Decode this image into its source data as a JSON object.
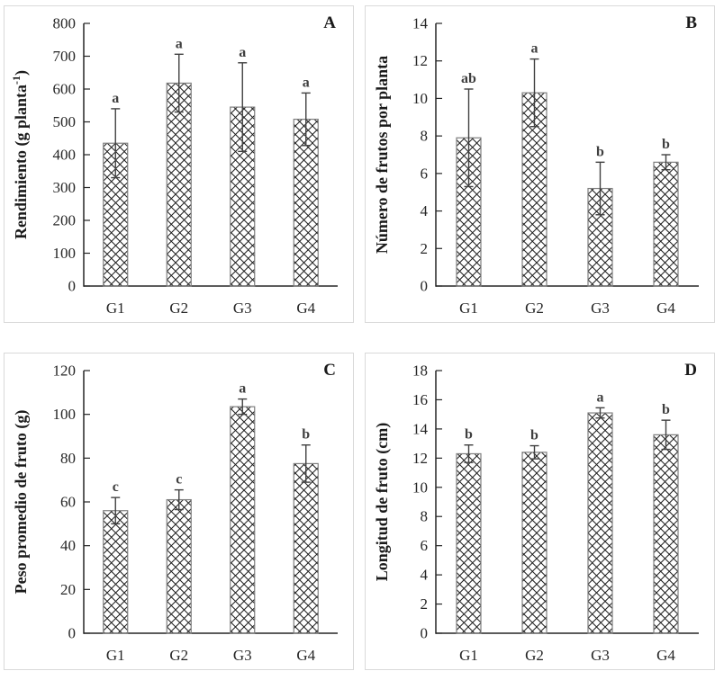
{
  "figure": {
    "background": "#ffffff",
    "panel_border_color": "#d9d9d9",
    "axis_color": "#262626",
    "tick_label_color": "#262626",
    "bar_hatch_color": "#1f1f1f",
    "bar_border_color": "#7f7f7f",
    "bar_fill": "#ffffff",
    "error_bar_color": "#404040",
    "sig_letter_color": "#3f3f3f",
    "panel_letter_color": "#1a1a1a"
  },
  "chart_data": [
    {
      "type": "bar",
      "panel_label": "A",
      "ylabel": "Rendimiento (g planta",
      "ylabel_sup": "-1",
      "ylabel_end": ")",
      "ylim": [
        0,
        800
      ],
      "ytick_step": 100,
      "grid": false,
      "legend": "none",
      "categories": [
        "G1",
        "G2",
        "G3",
        "G4"
      ],
      "values": [
        435,
        618,
        545,
        508
      ],
      "errors": [
        105,
        88,
        135,
        80
      ],
      "sig_letters": [
        "a",
        "a",
        "a",
        "a"
      ]
    },
    {
      "type": "bar",
      "panel_label": "B",
      "ylabel": "Número de frutos por planta",
      "ylabel_sup": "",
      "ylabel_end": "",
      "ylim": [
        0,
        14
      ],
      "ytick_step": 2,
      "grid": false,
      "legend": "none",
      "categories": [
        "G1",
        "G2",
        "G3",
        "G4"
      ],
      "values": [
        7.9,
        10.3,
        5.2,
        6.6
      ],
      "errors": [
        2.6,
        1.8,
        1.4,
        0.4
      ],
      "sig_letters": [
        "ab",
        "a",
        "b",
        "b"
      ]
    },
    {
      "type": "bar",
      "panel_label": "C",
      "ylabel": "Peso promedio de fruto (g)",
      "ylabel_sup": "",
      "ylabel_end": "",
      "ylim": [
        0,
        120
      ],
      "ytick_step": 20,
      "grid": false,
      "legend": "none",
      "categories": [
        "G1",
        "G2",
        "G3",
        "G4"
      ],
      "values": [
        56,
        61,
        103.5,
        77.5
      ],
      "errors": [
        6,
        4.5,
        3.5,
        8.5
      ],
      "sig_letters": [
        "c",
        "c",
        "a",
        "b"
      ]
    },
    {
      "type": "bar",
      "panel_label": "D",
      "ylabel": "Longitud de fruto (cm)",
      "ylabel_sup": "",
      "ylabel_end": "",
      "ylim": [
        0,
        18
      ],
      "ytick_step": 2,
      "grid": false,
      "legend": "none",
      "categories": [
        "G1",
        "G2",
        "G3",
        "G4"
      ],
      "values": [
        12.3,
        12.4,
        15.1,
        13.6
      ],
      "errors": [
        0.6,
        0.45,
        0.35,
        1.0
      ],
      "sig_letters": [
        "b",
        "b",
        "a",
        "b"
      ]
    }
  ]
}
